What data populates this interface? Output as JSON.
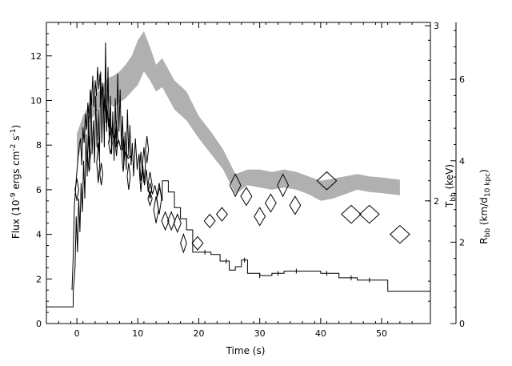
{
  "chart_data": {
    "type": "line",
    "xlabel": "Time (s)",
    "xlim": [
      -5,
      58
    ],
    "x_ticks": [
      0,
      10,
      20,
      30,
      40,
      50
    ],
    "axes": {
      "flux": {
        "label_prefix": "Flux (10",
        "label_exp1": "-9",
        "label_mid": " ergs cm",
        "label_exp2": "-2",
        "label_mid2": " s",
        "label_exp3": "-1",
        "label_suffix": ")",
        "ylim": [
          0,
          13.5
        ],
        "ticks": [
          0,
          2,
          4,
          6,
          8,
          10,
          12
        ]
      },
      "tbb": {
        "label_main": "T",
        "label_sub": "bb",
        "label_suffix": " (keV)",
        "ticks": [
          2,
          3
        ],
        "tick_positions_in_flux": [
          5.5,
          13.35
        ]
      },
      "rbb": {
        "label_main": "R",
        "label_sub1": "bb",
        "label_mid": " (km/d",
        "label_sub2": "10 kpc",
        "label_suffix": ")",
        "ylim": [
          0,
          7.4
        ],
        "ticks": [
          0,
          2,
          4,
          6
        ]
      }
    },
    "series": [
      {
        "role": "flux_histogram",
        "color": "#000000",
        "points": [
          [
            -5,
            0.75
          ],
          [
            -0.6,
            0.75
          ],
          [
            -0.6,
            1.4
          ],
          [
            -0.3,
            2.5
          ],
          [
            -0.1,
            4.8
          ],
          [
            0.1,
            3.2
          ],
          [
            0.3,
            5.6
          ],
          [
            0.5,
            4.1
          ],
          [
            0.7,
            6.3
          ],
          [
            0.9,
            5.0
          ],
          [
            1.1,
            7.3
          ],
          [
            1.3,
            5.6
          ],
          [
            1.5,
            8.5
          ],
          [
            1.7,
            6.6
          ],
          [
            1.9,
            9.3
          ],
          [
            2.1,
            6.9
          ],
          [
            2.3,
            10.4
          ],
          [
            2.5,
            7.6
          ],
          [
            2.7,
            9.1
          ],
          [
            2.9,
            7.2
          ],
          [
            3.1,
            10.2
          ],
          [
            3.3,
            7.9
          ],
          [
            3.5,
            9.6
          ],
          [
            3.7,
            7.3
          ],
          [
            3.9,
            11.3
          ],
          [
            4.1,
            8.1
          ],
          [
            4.3,
            10.6
          ],
          [
            4.5,
            7.9
          ],
          [
            4.7,
            12.6
          ],
          [
            4.9,
            8.6
          ],
          [
            5.1,
            11.5
          ],
          [
            5.3,
            8.1
          ],
          [
            5.5,
            10.2
          ],
          [
            5.7,
            7.6
          ],
          [
            5.9,
            9.5
          ],
          [
            6.1,
            7.3
          ],
          [
            6.3,
            10.1
          ],
          [
            6.5,
            7.9
          ],
          [
            6.7,
            11.2
          ],
          [
            6.9,
            8.6
          ],
          [
            7.1,
            10.5
          ],
          [
            7.3,
            7.9
          ],
          [
            7.5,
            9.3
          ],
          [
            7.7,
            7.1
          ],
          [
            7.9,
            8.6
          ],
          [
            8.1,
            6.9
          ],
          [
            8.3,
            9.6
          ],
          [
            8.5,
            7.5
          ],
          [
            8.7,
            8.9
          ],
          [
            8.9,
            7.1
          ],
          [
            9.1,
            8.1
          ],
          [
            9.3,
            6.6
          ],
          [
            9.6,
            8.3
          ],
          [
            9.9,
            6.9
          ],
          [
            10.2,
            7.6
          ],
          [
            10.5,
            6.4
          ],
          [
            10.8,
            7.1
          ],
          [
            11.1,
            6.2
          ],
          [
            11.4,
            6.9
          ],
          [
            11.7,
            5.9
          ],
          [
            12.0,
            6.3
          ],
          [
            12.4,
            5.8
          ],
          [
            12.8,
            6.2
          ],
          [
            13.2,
            5.7
          ],
          [
            13.6,
            6.1
          ],
          [
            14.0,
            5.5
          ],
          [
            14.0,
            6.4
          ],
          [
            15.0,
            6.4
          ],
          [
            15.0,
            5.9
          ],
          [
            16.0,
            5.9
          ],
          [
            16.0,
            5.2
          ],
          [
            17.0,
            5.2
          ],
          [
            17.0,
            4.7
          ],
          [
            18.0,
            4.7
          ],
          [
            18.0,
            4.2
          ],
          [
            19.0,
            4.2
          ],
          [
            19.0,
            3.2
          ],
          [
            22.0,
            3.2
          ],
          [
            22.0,
            3.1
          ],
          [
            23.5,
            3.1
          ],
          [
            23.5,
            2.8
          ],
          [
            25.0,
            2.8
          ],
          [
            25.0,
            2.4
          ],
          [
            26.0,
            2.4
          ],
          [
            26.0,
            2.55
          ],
          [
            27.0,
            2.55
          ],
          [
            27.0,
            2.85
          ],
          [
            28.0,
            2.85
          ],
          [
            28.0,
            2.25
          ],
          [
            30.0,
            2.25
          ],
          [
            30.0,
            2.15
          ],
          [
            32.0,
            2.15
          ],
          [
            32.0,
            2.25
          ],
          [
            34.0,
            2.25
          ],
          [
            34.0,
            2.35
          ],
          [
            40.0,
            2.35
          ],
          [
            40.0,
            2.25
          ],
          [
            43.0,
            2.25
          ],
          [
            43.0,
            2.05
          ],
          [
            46.0,
            2.05
          ],
          [
            46.0,
            1.95
          ],
          [
            51.0,
            1.95
          ],
          [
            51.0,
            1.45
          ],
          [
            58.0,
            1.45
          ]
        ]
      },
      {
        "role": "flux_curve",
        "color": "#000000",
        "points": [
          [
            -0.8,
            1.5
          ],
          [
            -0.6,
            3.0
          ],
          [
            -0.4,
            5.3
          ],
          [
            -0.2,
            6.1
          ],
          [
            0.0,
            6.8
          ],
          [
            0.2,
            7.4
          ],
          [
            0.4,
            8.0
          ],
          [
            0.6,
            8.3
          ],
          [
            0.8,
            7.1
          ],
          [
            1.0,
            8.8
          ],
          [
            1.2,
            8.1
          ],
          [
            1.4,
            9.4
          ],
          [
            1.6,
            8.7
          ],
          [
            1.8,
            9.9
          ],
          [
            2.0,
            9.2
          ],
          [
            2.2,
            10.5
          ],
          [
            2.4,
            9.8
          ],
          [
            2.6,
            11.1
          ],
          [
            2.8,
            9.7
          ],
          [
            3.0,
            10.9
          ],
          [
            3.2,
            10.2
          ],
          [
            3.4,
            11.5
          ],
          [
            3.6,
            10.5
          ],
          [
            3.8,
            11.2
          ],
          [
            4.0,
            10.0
          ],
          [
            4.2,
            10.8
          ],
          [
            4.4,
            9.5
          ],
          [
            4.6,
            10.3
          ],
          [
            4.8,
            9.0
          ],
          [
            5.0,
            9.6
          ],
          [
            5.2,
            8.8
          ],
          [
            5.4,
            9.2
          ],
          [
            5.6,
            8.5
          ],
          [
            5.8,
            8.8
          ],
          [
            6.0,
            8.3
          ],
          [
            6.3,
            8.5
          ],
          [
            6.6,
            8.0
          ],
          [
            6.9,
            8.2
          ],
          [
            7.2,
            7.8
          ],
          [
            7.5,
            7.9
          ],
          [
            7.8,
            7.6
          ],
          [
            8.1,
            7.7
          ],
          [
            8.4,
            7.4
          ],
          [
            8.7,
            7.5
          ],
          [
            9.0,
            7.3
          ]
        ]
      }
    ],
    "band": {
      "role": "rbb_band",
      "color": "#b0b0b0",
      "x": [
        0.0,
        1.0,
        2.0,
        3.0,
        4.0,
        5.0,
        6.0,
        7.0,
        8.0,
        9.0,
        10.0,
        11.0,
        12.0,
        13.0,
        14.0,
        16.0,
        18.0,
        20.0,
        22.0,
        24.0,
        26.0,
        28.0,
        30.0,
        32.0,
        34.0,
        36.0,
        38.0,
        40.0,
        42.0,
        44.0,
        46.0,
        48.0,
        50.0,
        53.0
      ],
      "lower": [
        7.2,
        8.2,
        9.0,
        9.4,
        9.8,
        10.0,
        9.7,
        9.9,
        10.1,
        10.4,
        10.7,
        11.3,
        10.9,
        10.4,
        10.6,
        9.6,
        9.1,
        8.3,
        7.6,
        6.9,
        5.8,
        6.2,
        6.1,
        6.0,
        6.1,
        6.0,
        5.8,
        5.5,
        5.6,
        5.8,
        6.0,
        5.9,
        5.85,
        5.75
      ],
      "upper": [
        8.5,
        9.3,
        9.8,
        10.2,
        10.6,
        11.0,
        11.1,
        11.3,
        11.6,
        12.0,
        12.7,
        13.1,
        12.4,
        11.6,
        11.9,
        10.9,
        10.4,
        9.3,
        8.6,
        7.8,
        6.7,
        6.9,
        6.9,
        6.8,
        6.9,
        6.8,
        6.6,
        6.4,
        6.5,
        6.6,
        6.7,
        6.6,
        6.55,
        6.45
      ]
    },
    "diamonds": {
      "role": "tbb_points",
      "color": "#000000",
      "points": [
        {
          "x": 0.0,
          "y": 6.0,
          "dx": 0.3,
          "dy": 0.5
        },
        {
          "x": 2.0,
          "y": 7.6,
          "dx": 0.25,
          "dy": 0.8
        },
        {
          "x": 3.5,
          "y": 7.2,
          "dx": 0.25,
          "dy": 0.9
        },
        {
          "x": 4.0,
          "y": 6.7,
          "dx": 0.25,
          "dy": 0.5
        },
        {
          "x": 5.5,
          "y": 8.1,
          "dx": 0.3,
          "dy": 0.5
        },
        {
          "x": 6.5,
          "y": 8.3,
          "dx": 0.25,
          "dy": 0.8
        },
        {
          "x": 7.6,
          "y": 7.6,
          "dx": 0.25,
          "dy": 0.8
        },
        {
          "x": 8.5,
          "y": 6.6,
          "dx": 0.25,
          "dy": 0.6
        },
        {
          "x": 10.5,
          "y": 6.8,
          "dx": 0.25,
          "dy": 0.9
        },
        {
          "x": 11.0,
          "y": 7.1,
          "dx": 0.25,
          "dy": 0.8
        },
        {
          "x": 11.5,
          "y": 7.8,
          "dx": 0.25,
          "dy": 0.6
        },
        {
          "x": 12.0,
          "y": 6.2,
          "dx": 0.35,
          "dy": 0.6
        },
        {
          "x": 12.0,
          "y": 5.6,
          "dx": 0.35,
          "dy": 0.3
        },
        {
          "x": 13.0,
          "y": 5.1,
          "dx": 0.4,
          "dy": 0.6
        },
        {
          "x": 13.5,
          "y": 5.6,
          "dx": 0.4,
          "dy": 0.7
        },
        {
          "x": 14.5,
          "y": 4.6,
          "dx": 0.6,
          "dy": 0.4
        },
        {
          "x": 15.5,
          "y": 4.6,
          "dx": 0.6,
          "dy": 0.4
        },
        {
          "x": 16.5,
          "y": 4.5,
          "dx": 0.6,
          "dy": 0.4
        },
        {
          "x": 17.5,
          "y": 3.6,
          "dx": 0.5,
          "dy": 0.4
        },
        {
          "x": 19.8,
          "y": 3.6,
          "dx": 0.9,
          "dy": 0.3
        },
        {
          "x": 21.8,
          "y": 4.6,
          "dx": 0.9,
          "dy": 0.3
        },
        {
          "x": 23.8,
          "y": 4.9,
          "dx": 0.9,
          "dy": 0.3
        },
        {
          "x": 26.0,
          "y": 6.2,
          "dx": 0.9,
          "dy": 0.5
        },
        {
          "x": 27.8,
          "y": 5.7,
          "dx": 0.9,
          "dy": 0.4
        },
        {
          "x": 30.0,
          "y": 4.8,
          "dx": 0.9,
          "dy": 0.4
        },
        {
          "x": 31.8,
          "y": 5.4,
          "dx": 0.9,
          "dy": 0.4
        },
        {
          "x": 33.8,
          "y": 6.2,
          "dx": 0.9,
          "dy": 0.5
        },
        {
          "x": 35.8,
          "y": 5.3,
          "dx": 0.9,
          "dy": 0.4
        },
        {
          "x": 41.0,
          "y": 6.4,
          "dx": 1.6,
          "dy": 0.4
        },
        {
          "x": 45.0,
          "y": 4.9,
          "dx": 1.6,
          "dy": 0.4
        },
        {
          "x": 48.0,
          "y": 4.9,
          "dx": 1.6,
          "dy": 0.4
        },
        {
          "x": 53.0,
          "y": 4.0,
          "dx": 1.6,
          "dy": 0.4
        }
      ]
    }
  }
}
